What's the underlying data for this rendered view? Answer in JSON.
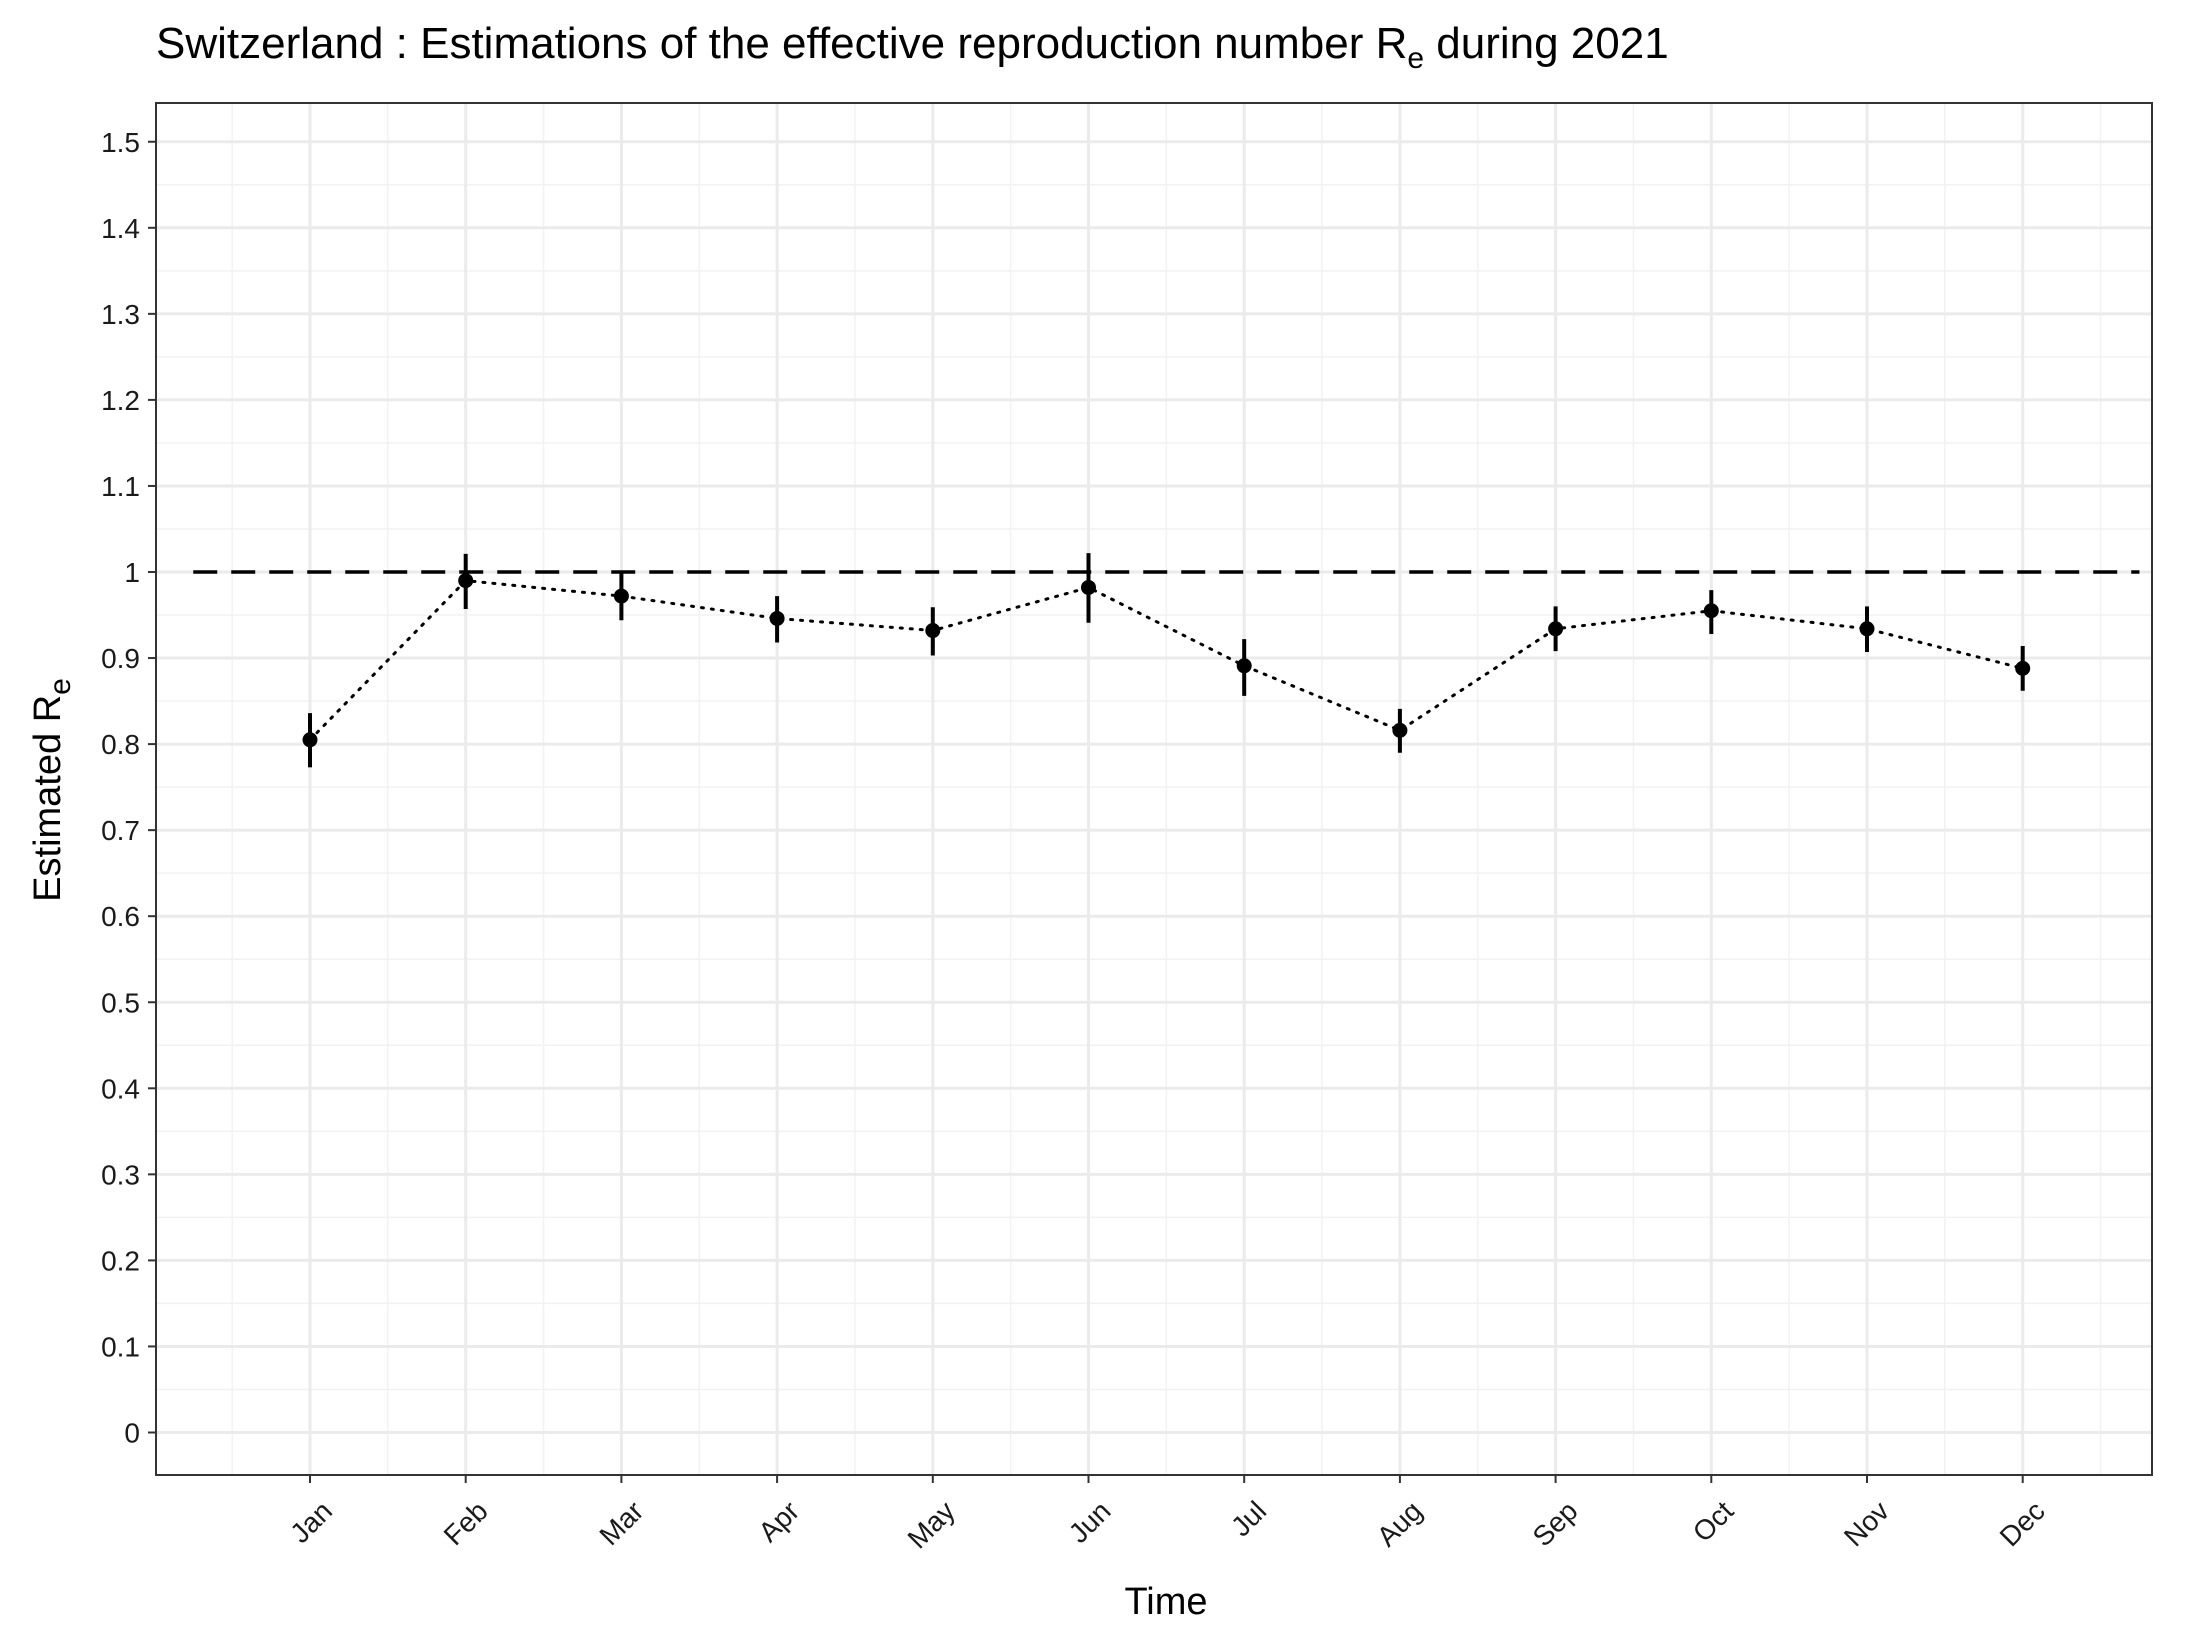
{
  "chart_data": {
    "type": "scatter",
    "title": "Switzerland : Estimations of the effective reproduction number R",
    "title_subscript": "e",
    "title_suffix": " during 2021",
    "xlabel": "Time",
    "ylabel": "Estimated R",
    "ylabel_subscript": "e",
    "categories": [
      "Jan",
      "Feb",
      "Mar",
      "Apr",
      "May",
      "Jun",
      "Jul",
      "Aug",
      "Sep",
      "Oct",
      "Nov",
      "Dec"
    ],
    "series": [
      {
        "values": [
          0.805,
          0.99,
          0.972,
          0.946,
          0.932,
          0.982,
          0.891,
          0.816,
          0.934,
          0.955,
          0.934,
          0.888
        ],
        "lower": [
          0.773,
          0.957,
          0.944,
          0.918,
          0.903,
          0.941,
          0.856,
          0.79,
          0.908,
          0.928,
          0.907,
          0.862
        ],
        "upper": [
          0.836,
          1.021,
          0.999,
          0.972,
          0.959,
          1.022,
          0.922,
          0.841,
          0.96,
          0.979,
          0.96,
          0.914
        ]
      }
    ],
    "reference_line": 1,
    "yticks": [
      "0",
      "0.1",
      "0.2",
      "0.3",
      "0.4",
      "0.5",
      "0.6",
      "0.7",
      "0.8",
      "0.9",
      "1",
      "1.1",
      "1.2",
      "1.3",
      "1.4",
      "1.5"
    ],
    "ylim": [
      -0.05,
      1.55
    ],
    "grid": true,
    "legend": "none",
    "colors": {
      "point": "#000000",
      "grid": "#ebebeb",
      "panel_border": "#333333"
    }
  }
}
